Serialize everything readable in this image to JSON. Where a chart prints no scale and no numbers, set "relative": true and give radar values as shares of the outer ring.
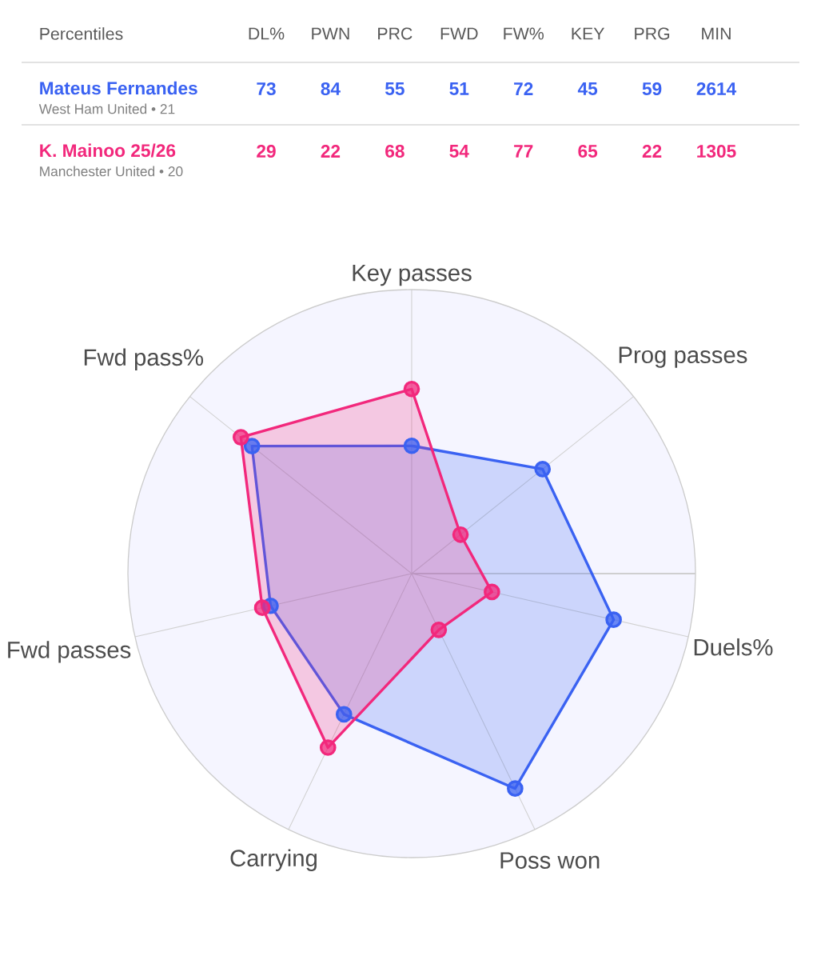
{
  "chart_data": [
    {
      "type": "other",
      "title": "Percentiles",
      "data_labels": true,
      "categories": [
        "DL%",
        "PWN",
        "PRC",
        "FWD",
        "FW%",
        "KEY",
        "PRG",
        "MIN"
      ],
      "series": [
        {
          "name": "Mateus Fernandes",
          "color": "#3a62f2",
          "values": [
            73,
            84,
            55,
            51,
            72,
            45,
            59,
            2614
          ]
        },
        {
          "name": "K. Mainoo 25/26",
          "color": "#f2287c",
          "values": [
            29,
            22,
            68,
            54,
            77,
            65,
            22,
            1305
          ]
        }
      ],
      "annotations": [
        "West Ham United • 21",
        "Manchester United • 20"
      ]
    },
    {
      "type": "radar",
      "relative": true,
      "grid": true,
      "marker": "circle",
      "categories": [
        "Key passes",
        "Prog passes",
        "Duels%",
        "Poss won",
        "Carrying",
        "Fwd passes",
        "Fwd pass%"
      ],
      "series": [
        {
          "color": "#3a62f2",
          "values": [
            0.45,
            0.59,
            0.73,
            0.84,
            0.55,
            0.51,
            0.72
          ]
        },
        {
          "color": "#f2287c",
          "values": [
            0.65,
            0.22,
            0.29,
            0.22,
            0.68,
            0.54,
            0.77
          ]
        }
      ]
    }
  ]
}
